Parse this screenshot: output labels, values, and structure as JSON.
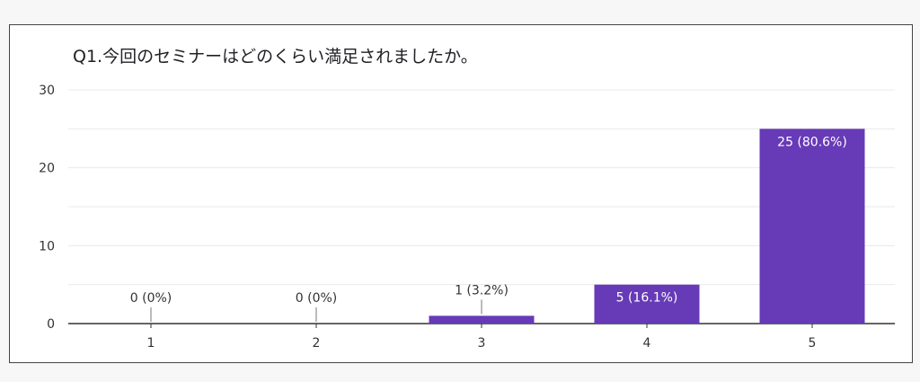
{
  "title": "Q1.今回のセミナーはどのくらい満足されましたか。",
  "colors": {
    "bar": "#673ab7",
    "grid": "#e8e8e8",
    "axis": "#333333"
  },
  "chart_data": {
    "type": "bar",
    "title": "Q1.今回のセミナーはどのくらい満足されましたか。",
    "xlabel": "",
    "ylabel": "",
    "categories": [
      "1",
      "2",
      "3",
      "4",
      "5"
    ],
    "values": [
      0,
      0,
      1,
      5,
      25
    ],
    "data_labels": [
      "0 (0%)",
      "0 (0%)",
      "1 (3.2%)",
      "5 (16.1%)",
      "25 (80.6%)"
    ],
    "ylim": [
      0,
      30
    ],
    "yticks": [
      0,
      10,
      20,
      30
    ],
    "grid": true,
    "legend": "none"
  }
}
